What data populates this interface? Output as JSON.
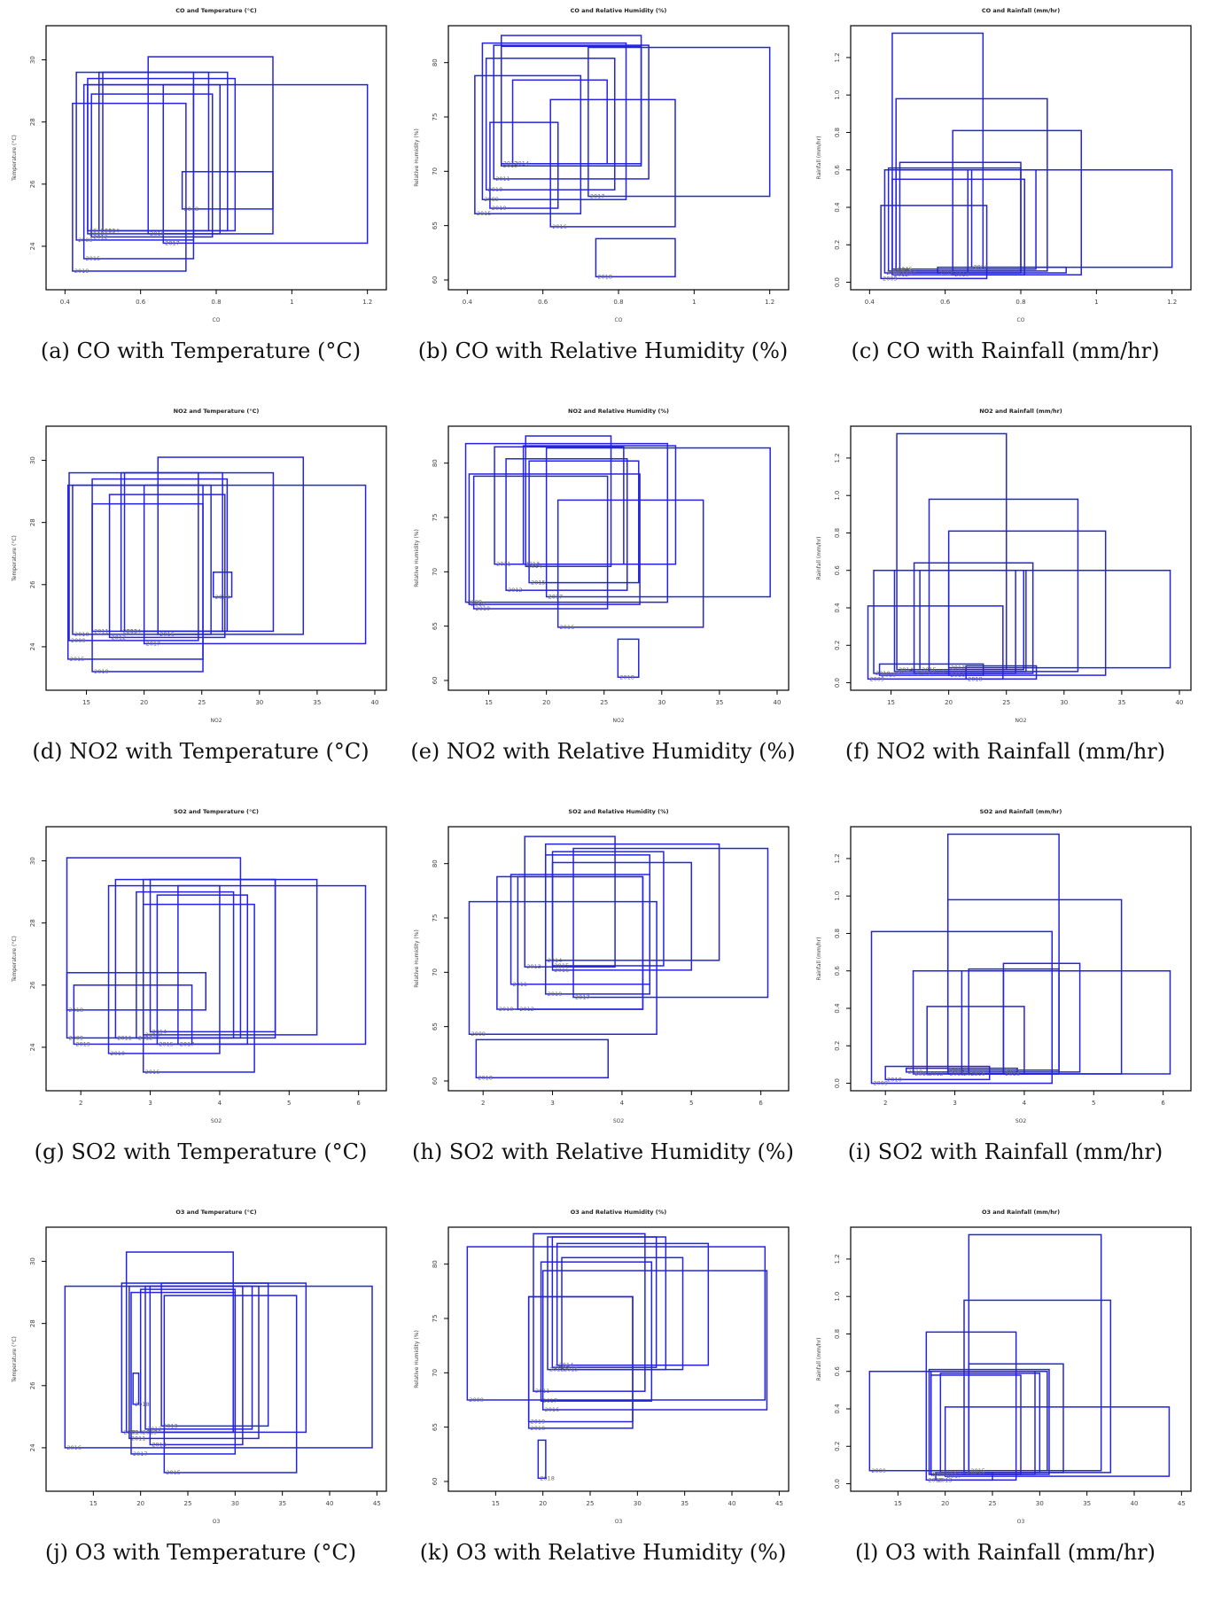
{
  "chart_data": [
    {
      "type": "rectangle",
      "label": "(a) CO with Temperature (°C)",
      "title": "CO and Temperature (°C)",
      "xlabel": "CO",
      "ylabel": "Temperature (°C)",
      "xlim": [
        0.35,
        1.25
      ],
      "ylim": [
        22.6,
        31.1
      ],
      "xticks": [
        0.4,
        0.6,
        0.8,
        1.0,
        1.2
      ],
      "yticks": [
        "24",
        "26",
        "28",
        "30"
      ],
      "years": [
        "2009",
        "2010",
        "2011",
        "2012",
        "2013",
        "2014",
        "2015",
        "2016",
        "2017",
        "2018",
        "2019"
      ],
      "rects": [
        [
          0.43,
          0.74,
          24.2,
          29.6
        ],
        [
          0.46,
          0.81,
          24.4,
          29.2
        ],
        [
          0.46,
          0.85,
          24.5,
          29.4
        ],
        [
          0.47,
          0.79,
          24.3,
          28.9
        ],
        [
          0.49,
          0.83,
          24.5,
          29.6
        ],
        [
          0.5,
          0.78,
          24.5,
          29.6
        ],
        [
          0.45,
          0.74,
          23.6,
          29.2
        ],
        [
          0.62,
          0.95,
          24.4,
          30.1
        ],
        [
          0.66,
          1.2,
          24.1,
          29.2
        ],
        [
          0.71,
          0.95,
          25.2,
          26.4
        ],
        [
          0.42,
          0.72,
          23.2,
          28.6
        ]
      ]
    },
    {
      "type": "rectangle",
      "label": "(b) CO with Relative Humidity (%)",
      "title": "CO and Relative Humidity (%)",
      "xlabel": "CO",
      "ylabel": "Relative Humidity (%)",
      "xlim": [
        0.35,
        1.25
      ],
      "ylim": [
        59.1,
        83.4
      ],
      "xticks": [
        0.4,
        0.6,
        0.8,
        1.0,
        1.2
      ],
      "yticks": [
        "60",
        "65",
        "70",
        "75",
        "80"
      ],
      "years": [
        "2009",
        "2010",
        "2011",
        "2012",
        "2013",
        "2014",
        "2015",
        "2016",
        "2017",
        "2018",
        "2019"
      ],
      "rects": [
        [
          0.44,
          0.82,
          67.4,
          81.8
        ],
        [
          0.45,
          0.79,
          68.3,
          80.4
        ],
        [
          0.47,
          0.88,
          69.3,
          81.6
        ],
        [
          0.49,
          0.86,
          70.7,
          81.5
        ],
        [
          0.49,
          0.86,
          70.5,
          82.5
        ],
        [
          0.52,
          0.77,
          70.7,
          78.4
        ],
        [
          0.42,
          0.7,
          66.1,
          78.8
        ],
        [
          0.62,
          0.95,
          64.9,
          76.6
        ],
        [
          0.72,
          1.2,
          67.7,
          81.4
        ],
        [
          0.74,
          0.95,
          60.3,
          63.8
        ],
        [
          0.46,
          0.64,
          66.6,
          74.5
        ]
      ]
    },
    {
      "type": "rectangle",
      "label": "(c) CO with Rainfall (mm/hr)",
      "title": "CO and Rainfall (mm/hr)",
      "xlabel": "CO",
      "ylabel": "Rainfall (mm/hr)",
      "xlim": [
        0.35,
        1.25
      ],
      "ylim": [
        -0.04,
        1.37
      ],
      "xticks": [
        0.4,
        0.6,
        0.8,
        1.0,
        1.2
      ],
      "yticks": [
        "0.0",
        "0.2",
        "0.4",
        "0.6",
        "0.8",
        "1.0",
        "1.2"
      ],
      "years": [
        "2009",
        "2010",
        "2011",
        "2012",
        "2013",
        "2014",
        "2015",
        "2016",
        "2017",
        "2018",
        "2019"
      ],
      "rects": [
        [
          0.43,
          0.71,
          0.02,
          0.41
        ],
        [
          0.44,
          0.66,
          0.05,
          0.6
        ],
        [
          0.45,
          0.8,
          0.06,
          0.61
        ],
        [
          0.46,
          0.81,
          0.04,
          0.55
        ],
        [
          0.47,
          0.87,
          0.06,
          0.98
        ],
        [
          0.46,
          0.7,
          0.07,
          1.33
        ],
        [
          0.47,
          0.84,
          0.07,
          0.6
        ],
        [
          0.48,
          0.8,
          0.05,
          0.64
        ],
        [
          0.67,
          1.2,
          0.08,
          0.6
        ],
        [
          0.58,
          0.92,
          0.05,
          0.08
        ],
        [
          0.62,
          0.96,
          0.04,
          0.81
        ]
      ]
    },
    {
      "type": "rectangle",
      "label": "(d) NO2 with Temperature (°C)",
      "title": "NO2 and Temperature (°C)",
      "xlabel": "NO2",
      "ylabel": "Temperature (°C)",
      "xlim": [
        11.5,
        41
      ],
      "ylim": [
        22.6,
        31.1
      ],
      "xticks": [
        15,
        20,
        25,
        30,
        35,
        40
      ],
      "yticks": [
        "24",
        "26",
        "28",
        "30"
      ],
      "years": [
        "2009",
        "2010",
        "2011",
        "2012",
        "2013",
        "2014",
        "2015",
        "2016",
        "2017",
        "2018",
        "2019"
      ],
      "rects": [
        [
          13.5,
          24.7,
          24.2,
          29.6
        ],
        [
          13.8,
          25.8,
          24.4,
          29.2
        ],
        [
          15.5,
          27.2,
          24.5,
          29.4
        ],
        [
          17.0,
          27.0,
          24.3,
          28.9
        ],
        [
          18.0,
          31.2,
          24.5,
          29.6
        ],
        [
          18.3,
          26.8,
          24.5,
          29.6
        ],
        [
          13.4,
          25.1,
          23.6,
          29.2
        ],
        [
          21.2,
          33.8,
          24.4,
          30.1
        ],
        [
          20.0,
          39.2,
          24.1,
          29.2
        ],
        [
          26.0,
          27.6,
          25.6,
          26.4
        ],
        [
          15.5,
          25.1,
          23.2,
          28.6
        ]
      ]
    },
    {
      "type": "rectangle",
      "label": "(e) NO2 with Relative Humidity (%)",
      "title": "NO2 and Relative Humidity (%)",
      "xlabel": "NO2",
      "ylabel": "Relative Humidity (%)",
      "xlim": [
        11.5,
        41
      ],
      "ylim": [
        59.1,
        83.4
      ],
      "xticks": [
        15,
        20,
        25,
        30,
        35,
        40
      ],
      "yticks": [
        "60",
        "65",
        "70",
        "75",
        "80"
      ],
      "years": [
        "2009",
        "2010",
        "2011",
        "2012",
        "2013",
        "2014",
        "2015",
        "2016",
        "2017",
        "2018",
        "2019"
      ],
      "rects": [
        [
          13.0,
          30.5,
          67.2,
          81.8
        ],
        [
          13.7,
          25.3,
          66.6,
          78.8
        ],
        [
          15.5,
          26.7,
          70.7,
          81.5
        ],
        [
          16.5,
          27.0,
          68.3,
          80.4
        ],
        [
          18.0,
          31.2,
          70.7,
          81.6
        ],
        [
          18.2,
          25.6,
          70.5,
          82.5
        ],
        [
          18.5,
          28.0,
          69.0,
          80.2
        ],
        [
          21.0,
          33.6,
          64.9,
          76.6
        ],
        [
          20.0,
          39.4,
          67.7,
          81.4
        ],
        [
          26.2,
          28.0,
          60.3,
          63.8
        ],
        [
          13.3,
          28.1,
          67.0,
          79.0
        ]
      ]
    },
    {
      "type": "rectangle",
      "label": "(f) NO2 with Rainfall (mm/hr)",
      "title": "NO2 and Rainfall (mm/hr)",
      "xlabel": "NO2",
      "ylabel": "Rainfall (mm/hr)",
      "xlim": [
        11.5,
        41
      ],
      "ylim": [
        -0.04,
        1.37
      ],
      "xticks": [
        15,
        20,
        25,
        30,
        35,
        40
      ],
      "yticks": [
        "0.0",
        "0.2",
        "0.4",
        "0.6",
        "0.8",
        "1.0",
        "1.2"
      ],
      "years": [
        "2009",
        "2010",
        "2011",
        "2012",
        "2013",
        "2014",
        "2015",
        "2016",
        "2017",
        "2018",
        "2019"
      ],
      "rects": [
        [
          13.0,
          24.7,
          0.02,
          0.41
        ],
        [
          13.5,
          25.8,
          0.05,
          0.6
        ],
        [
          15.3,
          26.7,
          0.06,
          0.6
        ],
        [
          17.0,
          27.3,
          0.05,
          0.64
        ],
        [
          18.3,
          31.2,
          0.06,
          0.98
        ],
        [
          15.5,
          25.0,
          0.07,
          1.33
        ],
        [
          17.5,
          26.5,
          0.07,
          0.6
        ],
        [
          20.0,
          33.6,
          0.04,
          0.81
        ],
        [
          20.0,
          39.2,
          0.08,
          0.6
        ],
        [
          21.5,
          27.6,
          0.02,
          0.09
        ],
        [
          14.0,
          23.0,
          0.04,
          0.1
        ]
      ]
    },
    {
      "type": "rectangle",
      "label": "(g) SO2 with Temperature (°C)",
      "title": "SO2 and Temperature (°C)",
      "xlabel": "SO2",
      "ylabel": "Temperature (°C)",
      "xlim": [
        1.5,
        6.4
      ],
      "ylim": [
        22.6,
        31.1
      ],
      "xticks": [
        2,
        3,
        4,
        5,
        6
      ],
      "yticks": [
        "24",
        "26",
        "28",
        "30"
      ],
      "years": [
        "2009",
        "2010",
        "2011",
        "2012",
        "2013",
        "2014",
        "2015",
        "2016",
        "2017",
        "2018",
        "2019"
      ],
      "rects": [
        [
          1.8,
          4.3,
          24.3,
          30.1
        ],
        [
          2.4,
          4.0,
          23.8,
          29.2
        ],
        [
          2.5,
          4.8,
          24.3,
          29.4
        ],
        [
          2.8,
          4.2,
          24.3,
          29.0
        ],
        [
          2.9,
          5.4,
          24.4,
          29.4
        ],
        [
          3.0,
          4.8,
          24.5,
          29.4
        ],
        [
          3.1,
          4.4,
          24.1,
          28.9
        ],
        [
          2.9,
          4.5,
          23.2,
          28.6
        ],
        [
          3.4,
          6.1,
          24.1,
          29.2
        ],
        [
          1.8,
          3.8,
          25.2,
          26.4
        ],
        [
          1.9,
          3.6,
          24.1,
          26.0
        ]
      ]
    },
    {
      "type": "rectangle",
      "label": "(h) SO2 with Relative Humidity (%)",
      "title": "SO2 and Relative Humidity (%)",
      "xlabel": "SO2",
      "ylabel": "Relative Humidity (%)",
      "xlim": [
        1.5,
        6.4
      ],
      "ylim": [
        59.1,
        83.4
      ],
      "xticks": [
        2,
        3,
        4,
        5,
        6
      ],
      "yticks": [
        "60",
        "65",
        "70",
        "75",
        "80"
      ],
      "years": [
        "2009",
        "2010",
        "2011",
        "2012",
        "2013",
        "2014",
        "2015",
        "2016",
        "2017",
        "2018",
        "2019"
      ],
      "rects": [
        [
          1.8,
          4.5,
          64.3,
          76.5
        ],
        [
          2.2,
          4.3,
          66.6,
          78.8
        ],
        [
          2.4,
          4.4,
          68.9,
          79.0
        ],
        [
          2.5,
          4.3,
          66.6,
          78.8
        ],
        [
          2.6,
          3.9,
          70.5,
          82.5
        ],
        [
          2.9,
          5.4,
          71.1,
          81.8
        ],
        [
          3.0,
          4.6,
          70.6,
          81.1
        ],
        [
          3.0,
          5.0,
          70.2,
          80.1
        ],
        [
          3.3,
          6.1,
          67.7,
          81.4
        ],
        [
          1.9,
          3.8,
          60.3,
          63.8
        ],
        [
          2.9,
          4.4,
          68.0,
          80.8
        ]
      ]
    },
    {
      "type": "rectangle",
      "label": "(i) SO2 with Rainfall (mm/hr)",
      "title": "SO2 and Rainfall (mm/hr)",
      "xlabel": "SO2",
      "ylabel": "Rainfall (mm/hr)",
      "xlim": [
        1.5,
        6.4
      ],
      "ylim": [
        -0.04,
        1.37
      ],
      "xticks": [
        2,
        3,
        4,
        5,
        6
      ],
      "yticks": [
        "0.0",
        "0.2",
        "0.4",
        "0.6",
        "0.8",
        "1.0",
        "1.2"
      ],
      "years": [
        "2009",
        "2010",
        "2011",
        "2012",
        "2013",
        "2014",
        "2015",
        "2016",
        "2017",
        "2018",
        "2019"
      ],
      "rects": [
        [
          1.8,
          4.4,
          0.0,
          0.81
        ],
        [
          2.0,
          3.5,
          0.02,
          0.09
        ],
        [
          2.4,
          4.4,
          0.05,
          0.6
        ],
        [
          2.6,
          4.0,
          0.05,
          0.41
        ],
        [
          2.9,
          5.4,
          0.05,
          0.98
        ],
        [
          2.9,
          4.5,
          0.07,
          1.33
        ],
        [
          3.1,
          4.4,
          0.05,
          0.6
        ],
        [
          3.2,
          4.5,
          0.05,
          0.61
        ],
        [
          3.7,
          4.8,
          0.06,
          0.64
        ],
        [
          3.7,
          6.1,
          0.05,
          0.6
        ],
        [
          2.3,
          3.9,
          0.06,
          0.08
        ]
      ]
    },
    {
      "type": "rectangle",
      "label": "(j) O3 with Temperature (°C)",
      "title": "O3 and Temperature (°C)",
      "xlabel": "O3",
      "ylabel": "Temperature (°C)",
      "xlim": [
        10,
        46
      ],
      "ylim": [
        22.6,
        31.1
      ],
      "xticks": [
        15,
        20,
        25,
        30,
        35,
        40,
        45
      ],
      "yticks": [
        "24",
        "26",
        "28",
        "30"
      ],
      "years": [
        "2009",
        "2010",
        "2011",
        "2012",
        "2013",
        "2014",
        "2015",
        "2016",
        "2017",
        "2018",
        "2019"
      ],
      "rects": [
        [
          18.0,
          37.5,
          24.5,
          29.3
        ],
        [
          18.5,
          29.8,
          24.5,
          30.3
        ],
        [
          18.8,
          32.5,
          24.3,
          29.2
        ],
        [
          20.5,
          31.8,
          24.6,
          29.2
        ],
        [
          22.2,
          33.5,
          24.7,
          29.3
        ],
        [
          21.0,
          30.8,
          24.1,
          29.2
        ],
        [
          22.5,
          36.5,
          23.2,
          28.9
        ],
        [
          12.0,
          44.5,
          24.0,
          29.2
        ],
        [
          19.0,
          30.0,
          23.8,
          29.0
        ],
        [
          19.2,
          19.8,
          25.4,
          26.4
        ],
        [
          20.0,
          30.0,
          24.5,
          29.1
        ]
      ]
    },
    {
      "type": "rectangle",
      "label": "(k) O3 with Relative Humidity (%)",
      "title": "O3 and Relative Humidity (%)",
      "xlabel": "O3",
      "ylabel": "Relative Humidity (%)",
      "xlim": [
        10,
        46
      ],
      "ylim": [
        59.1,
        83.4
      ],
      "xticks": [
        15,
        20,
        25,
        30,
        35,
        40,
        45
      ],
      "yticks": [
        "60",
        "65",
        "70",
        "75",
        "80"
      ],
      "years": [
        "2009",
        "2010",
        "2011",
        "2012",
        "2013",
        "2014",
        "2015",
        "2016",
        "2017",
        "2018",
        "2019"
      ],
      "rects": [
        [
          12.0,
          43.5,
          67.5,
          81.6
        ],
        [
          18.5,
          29.5,
          64.9,
          77.0
        ],
        [
          19.0,
          30.8,
          68.3,
          82.8
        ],
        [
          20.5,
          33.0,
          70.3,
          82.5
        ],
        [
          21.0,
          32.0,
          70.5,
          82.5
        ],
        [
          21.5,
          37.5,
          70.7,
          81.9
        ],
        [
          22.0,
          34.8,
          70.3,
          80.6
        ],
        [
          20.0,
          43.7,
          66.6,
          79.4
        ],
        [
          19.8,
          31.5,
          67.4,
          80.2
        ],
        [
          19.5,
          20.3,
          60.3,
          63.8
        ],
        [
          18.5,
          29.5,
          65.5,
          77.0
        ]
      ]
    },
    {
      "type": "rectangle",
      "label": "(l) O3 with Rainfall (mm/hr)",
      "title": "O3 and Rainfall (mm/hr)",
      "xlabel": "O3",
      "ylabel": "Rainfall (mm/hr)",
      "xlim": [
        10,
        46
      ],
      "ylim": [
        -0.04,
        1.37
      ],
      "xticks": [
        15,
        20,
        25,
        30,
        35,
        40,
        45
      ],
      "yticks": [
        "0.0",
        "0.2",
        "0.4",
        "0.6",
        "0.8",
        "1.0",
        "1.2"
      ],
      "years": [
        "2009",
        "2010",
        "2011",
        "2012",
        "2013",
        "2014",
        "2015",
        "2016",
        "2017",
        "2018",
        "2019"
      ],
      "rects": [
        [
          12.0,
          30.8,
          0.07,
          0.6
        ],
        [
          18.0,
          27.5,
          0.02,
          0.81
        ],
        [
          18.3,
          31.0,
          0.05,
          0.61
        ],
        [
          18.5,
          29.5,
          0.05,
          0.6
        ],
        [
          19.0,
          25.0,
          0.02,
          0.06
        ],
        [
          22.0,
          37.5,
          0.06,
          0.98
        ],
        [
          22.5,
          36.5,
          0.07,
          1.33
        ],
        [
          22.5,
          32.5,
          0.06,
          0.64
        ],
        [
          20.0,
          43.7,
          0.04,
          0.41
        ],
        [
          19.5,
          30.0,
          0.06,
          0.59
        ],
        [
          18.5,
          28.0,
          0.05,
          0.58
        ]
      ]
    }
  ]
}
